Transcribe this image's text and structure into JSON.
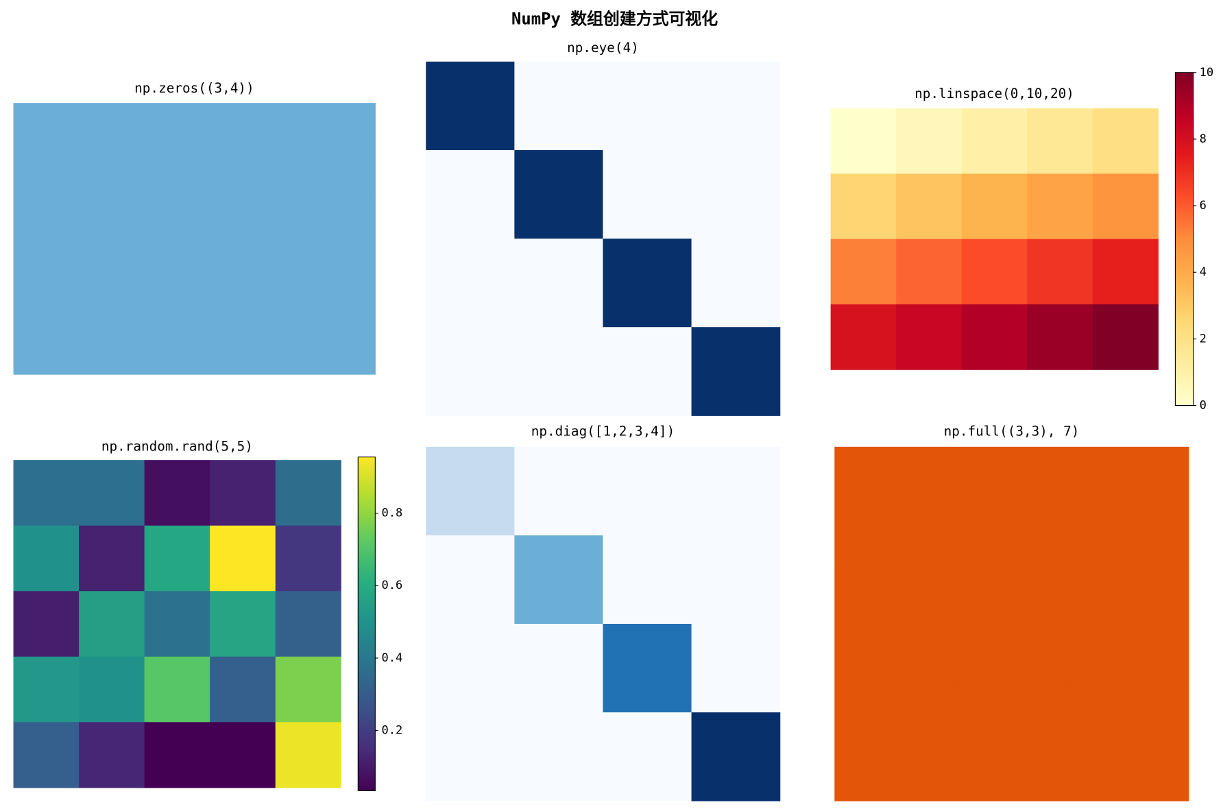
{
  "title": "NumPy 数组创建方式可视化",
  "chart_data": [
    {
      "type": "heatmap",
      "title": "np.zeros((3,4))",
      "values": [
        [
          0,
          0,
          0,
          0
        ],
        [
          0,
          0,
          0,
          0
        ],
        [
          0,
          0,
          0,
          0
        ]
      ],
      "clim": [
        -1,
        1
      ],
      "colormap": [
        "#f7fbff",
        "#deebf7",
        "#c6dbef",
        "#9ecae1",
        "#6baed6",
        "#4292c6",
        "#2171b5",
        "#08519c",
        "#08306b"
      ]
    },
    {
      "type": "heatmap",
      "title": "np.eye(4)",
      "values": [
        [
          1,
          0,
          0,
          0
        ],
        [
          0,
          1,
          0,
          0
        ],
        [
          0,
          0,
          1,
          0
        ],
        [
          0,
          0,
          0,
          1
        ]
      ],
      "clim": [
        0,
        1
      ],
      "colormap": [
        "#f7fbff",
        "#deebf7",
        "#c6dbef",
        "#9ecae1",
        "#6baed6",
        "#4292c6",
        "#2171b5",
        "#08519c",
        "#08306b"
      ]
    },
    {
      "type": "heatmap",
      "title": "np.linspace(0,10,20)",
      "values": [
        [
          0,
          0.526,
          1.053,
          1.579,
          2.105
        ],
        [
          2.632,
          3.158,
          3.684,
          4.211,
          4.737
        ],
        [
          5.263,
          5.789,
          6.316,
          6.842,
          7.368
        ],
        [
          7.895,
          8.421,
          8.947,
          9.474,
          10
        ]
      ],
      "clim": [
        0,
        10
      ],
      "colorbar": true,
      "cticks": [
        0,
        2,
        4,
        6,
        8,
        10
      ],
      "colormap": [
        "#ffffcc",
        "#ffeda0",
        "#fed976",
        "#feb24c",
        "#fd8d3c",
        "#fc4e2a",
        "#e31a1c",
        "#bd0026",
        "#800026"
      ]
    },
    {
      "type": "heatmap",
      "title": "np.random.rand(5,5)",
      "values": [
        [
          0.37,
          0.37,
          0.07,
          0.12,
          0.36
        ],
        [
          0.5,
          0.12,
          0.58,
          0.955,
          0.18
        ],
        [
          0.11,
          0.55,
          0.38,
          0.57,
          0.32
        ],
        [
          0.52,
          0.5,
          0.71,
          0.31,
          0.77
        ],
        [
          0.31,
          0.13,
          0.034,
          0.035,
          0.93
        ]
      ],
      "clim": [
        0.034,
        0.955
      ],
      "colorbar": true,
      "cticks": [
        0.2,
        0.4,
        0.6,
        0.8
      ],
      "colormap": [
        "#440154",
        "#472d7b",
        "#3b528b",
        "#2c728e",
        "#21918c",
        "#28ae80",
        "#5ec962",
        "#addc30",
        "#fde725"
      ]
    },
    {
      "type": "heatmap",
      "title": "np.diag([1,2,3,4])",
      "values": [
        [
          1,
          0,
          0,
          0
        ],
        [
          0,
          2,
          0,
          0
        ],
        [
          0,
          0,
          3,
          0
        ],
        [
          0,
          0,
          0,
          4
        ]
      ],
      "clim": [
        0,
        4
      ],
      "colormap": [
        "#f7fbff",
        "#deebf7",
        "#c6dbef",
        "#9ecae1",
        "#6baed6",
        "#4292c6",
        "#2171b5",
        "#08519c",
        "#08306b"
      ]
    },
    {
      "type": "heatmap",
      "title": "np.full((3,3), 7)",
      "values": [
        [
          7,
          7,
          7
        ],
        [
          7,
          7,
          7
        ],
        [
          7,
          7,
          7
        ]
      ],
      "clim": [
        0,
        10
      ],
      "colormap": [
        "#fff5eb",
        "#fee6ce",
        "#fdd0a2",
        "#fdae6b",
        "#fd8d3c",
        "#f16913",
        "#d94801",
        "#a63603",
        "#7f2704"
      ]
    }
  ]
}
